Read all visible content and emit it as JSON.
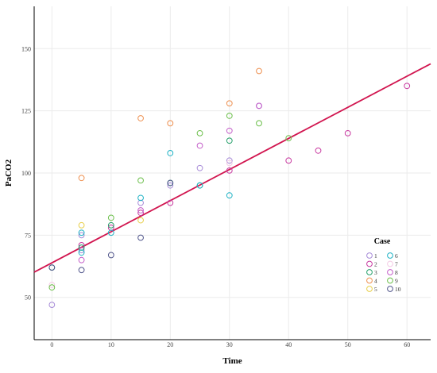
{
  "chart_data": {
    "type": "scatter",
    "title": "",
    "xlabel": "Time",
    "ylabel": "PaCO2",
    "xlim": [
      -3,
      64
    ],
    "ylim": [
      33,
      167
    ],
    "xticks": [
      0,
      10,
      20,
      30,
      40,
      50,
      60
    ],
    "yticks": [
      50,
      75,
      100,
      125,
      150
    ],
    "grid": true,
    "legend": {
      "title": "Case",
      "placement": "bottom-right"
    },
    "series": [
      {
        "name": "1",
        "color": "#a78bd8",
        "points": [
          [
            0,
            47
          ],
          [
            5,
            75
          ],
          [
            5,
            69
          ],
          [
            15,
            88
          ],
          [
            20,
            95
          ],
          [
            25,
            102
          ],
          [
            30,
            105
          ],
          [
            35,
            127
          ]
        ]
      },
      {
        "name": "2",
        "color": "#c83aa0",
        "points": [
          [
            5,
            71
          ],
          [
            10,
            78
          ],
          [
            15,
            84
          ],
          [
            20,
            88
          ],
          [
            30,
            101
          ],
          [
            40,
            105
          ],
          [
            45,
            109
          ],
          [
            50,
            116
          ],
          [
            60,
            135
          ]
        ]
      },
      {
        "name": "3",
        "color": "#25a06a",
        "points": [
          [
            0,
            62
          ],
          [
            5,
            70
          ],
          [
            10,
            79
          ],
          [
            20,
            96
          ],
          [
            25,
            95
          ],
          [
            30,
            113
          ]
        ]
      },
      {
        "name": "4",
        "color": "#ee9050",
        "points": [
          [
            5,
            98
          ],
          [
            15,
            122
          ],
          [
            20,
            120
          ],
          [
            30,
            128
          ],
          [
            35,
            141
          ]
        ]
      },
      {
        "name": "5",
        "color": "#e8cf4a",
        "points": [
          [
            5,
            79
          ],
          [
            15,
            81
          ]
        ]
      },
      {
        "name": "6",
        "color": "#1fb2c5",
        "points": [
          [
            5,
            76
          ],
          [
            5,
            68
          ],
          [
            10,
            76
          ],
          [
            15,
            90
          ],
          [
            20,
            108
          ],
          [
            25,
            95
          ],
          [
            30,
            91
          ]
        ]
      },
      {
        "name": "7",
        "color": "#f4cbe5",
        "points": [
          [
            0,
            55
          ],
          [
            30,
            104
          ]
        ]
      },
      {
        "name": "8",
        "color": "#c45ec9",
        "points": [
          [
            5,
            65
          ],
          [
            15,
            85
          ],
          [
            25,
            111
          ],
          [
            30,
            117
          ],
          [
            35,
            127
          ]
        ]
      },
      {
        "name": "9",
        "color": "#6cbf4b",
        "points": [
          [
            0,
            54
          ],
          [
            10,
            82
          ],
          [
            15,
            97
          ],
          [
            25,
            116
          ],
          [
            30,
            123
          ],
          [
            35,
            120
          ],
          [
            40,
            114
          ]
        ]
      },
      {
        "name": "10",
        "color": "#52578c",
        "points": [
          [
            0,
            62
          ],
          [
            5,
            61
          ],
          [
            10,
            67
          ],
          [
            15,
            74
          ],
          [
            20,
            96
          ]
        ]
      }
    ],
    "regression_line": {
      "color": "#d1154f",
      "intercept": 63.9,
      "slope": 1.25
    }
  }
}
